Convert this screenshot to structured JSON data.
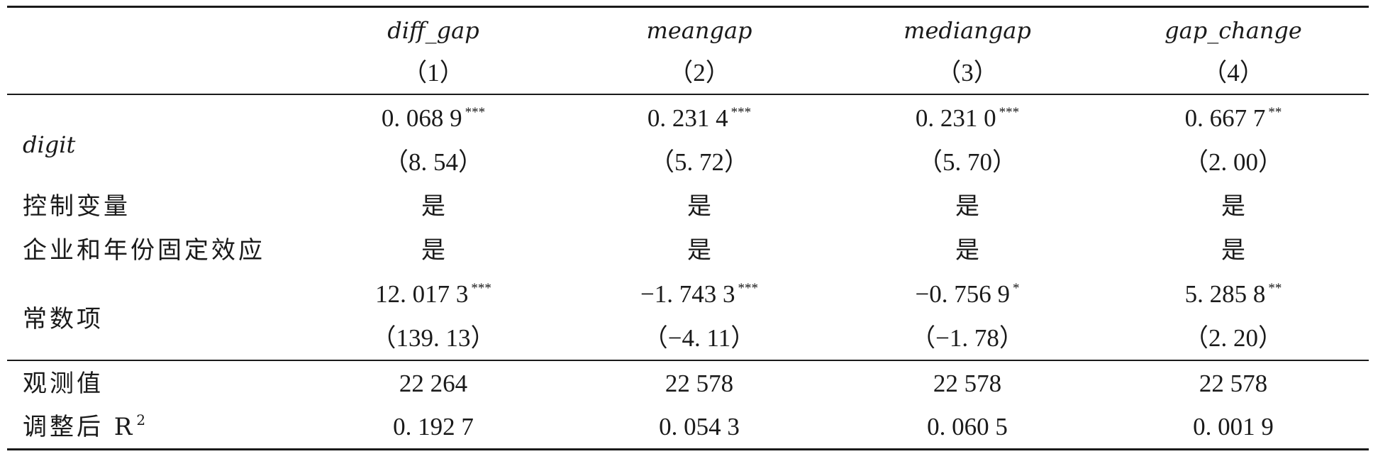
{
  "header": {
    "columns": [
      "diff_gap",
      "meangap",
      "mediangap",
      "gap_change"
    ],
    "numbers": [
      "（1）",
      "（2）",
      "（3）",
      "（4）"
    ]
  },
  "rows": {
    "digit": {
      "label": "digit",
      "coef": [
        "0. 068 9",
        "0. 231 4",
        "0. 231 0",
        "0. 667 7"
      ],
      "stars": [
        "***",
        "***",
        "***",
        "**"
      ],
      "tstat": [
        "（8. 54）",
        "（5. 72）",
        "（5. 70）",
        "（2. 00）"
      ]
    },
    "controls": {
      "label": "控制变量",
      "values": [
        "是",
        "是",
        "是",
        "是"
      ]
    },
    "fixed_effects": {
      "label": "企业和年份固定效应",
      "values": [
        "是",
        "是",
        "是",
        "是"
      ]
    },
    "constant": {
      "label": "常数项",
      "coef": [
        "12. 017 3",
        "−1. 743 3",
        "−0. 756 9",
        "5. 285 8"
      ],
      "stars": [
        "***",
        "***",
        "*",
        "**"
      ],
      "tstat": [
        "（139. 13）",
        "（−4. 11）",
        "（−1. 78）",
        "（2. 20）"
      ]
    },
    "observations": {
      "label": "观测值",
      "values": [
        "22 264",
        "22 578",
        "22 578",
        "22 578"
      ]
    },
    "adj_r2": {
      "label": "调整后 R",
      "label_sup": "2",
      "values": [
        "0. 192 7",
        "0. 054 3",
        "0. 060 5",
        "0. 001 9"
      ]
    }
  }
}
